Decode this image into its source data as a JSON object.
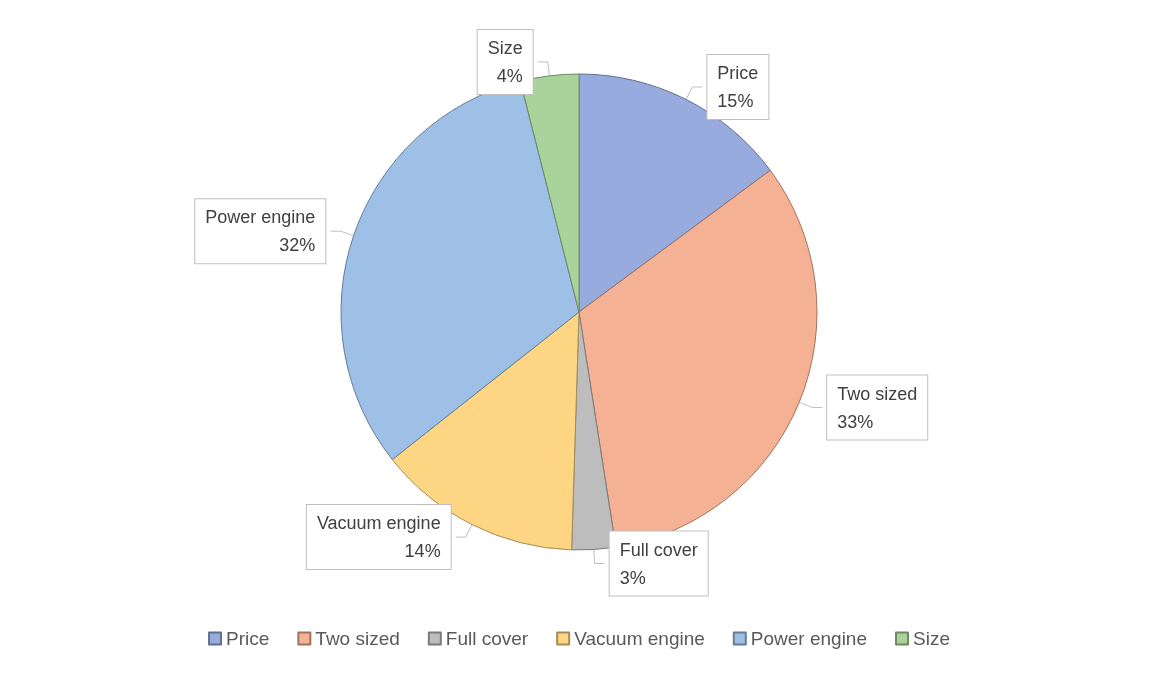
{
  "chart_data": {
    "type": "pie",
    "categories": [
      "Price",
      "Two sized",
      "Full cover",
      "Vacuum engine",
      "Power engine",
      "Size"
    ],
    "values": [
      15,
      33,
      3,
      14,
      32,
      4
    ],
    "value_labels": [
      "15%",
      "33%",
      "3%",
      "14%",
      "32%",
      "4%"
    ],
    "colors": [
      "#97abde",
      "#f5b193",
      "#bdbdbd",
      "#fed683",
      "#9fc0e6",
      "#a9d39a"
    ],
    "legend": "bottom"
  }
}
